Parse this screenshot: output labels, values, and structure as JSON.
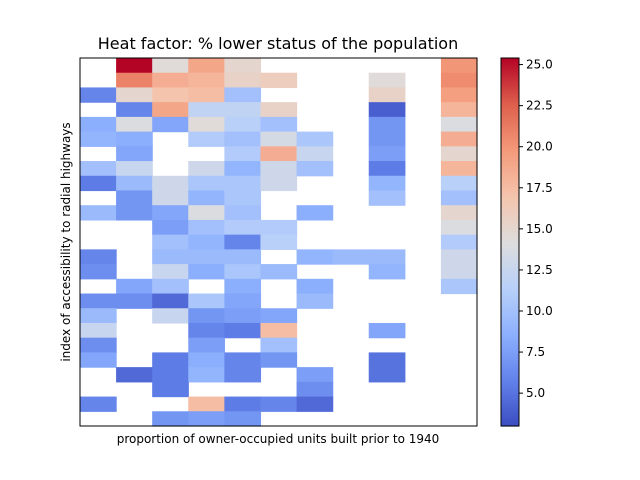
{
  "chart_data": {
    "type": "heatmap",
    "title": "Heat factor: % lower status of the population",
    "xlabel": "proportion of owner-occupied units built prior to 1940",
    "ylabel": "index of accessibility to radial highways",
    "colormap": "coolwarm",
    "vmin": 3.0,
    "vmax": 25.4,
    "colorbar_ticks": [
      5.0,
      7.5,
      10.0,
      12.5,
      15.0,
      17.5,
      20.0,
      22.5,
      25.0
    ],
    "colorbar_tick_labels": [
      "5.0",
      "7.5",
      "10.0",
      "12.5",
      "15.0",
      "17.5",
      "20.0",
      "22.5",
      "25.0"
    ],
    "n_cols": 11,
    "n_rows": 25,
    "values": [
      [
        null,
        25.4,
        14.5,
        19.0,
        15.0,
        null,
        null,
        null,
        null,
        null,
        20.0
      ],
      [
        null,
        21.0,
        18.5,
        18.0,
        15.5,
        16.0,
        null,
        null,
        14.5,
        null,
        20.5
      ],
      [
        6.0,
        15.0,
        17.0,
        17.5,
        10.0,
        null,
        null,
        null,
        15.5,
        null,
        19.5
      ],
      [
        null,
        6.0,
        19.0,
        12.0,
        12.0,
        15.5,
        null,
        null,
        4.0,
        null,
        18.0
      ],
      [
        8.5,
        14.0,
        8.0,
        14.5,
        11.5,
        10.0,
        null,
        null,
        7.0,
        null,
        14.0
      ],
      [
        9.0,
        8.5,
        null,
        11.0,
        10.0,
        13.5,
        10.5,
        null,
        7.0,
        null,
        18.5
      ],
      [
        null,
        8.0,
        null,
        null,
        11.0,
        18.5,
        12.5,
        null,
        7.5,
        null,
        15.0
      ],
      [
        10.0,
        12.5,
        null,
        13.0,
        9.0,
        13.0,
        10.0,
        null,
        5.5,
        null,
        18.0
      ],
      [
        5.5,
        9.5,
        13.0,
        10.5,
        10.5,
        13.0,
        null,
        null,
        9.0,
        null,
        11.5
      ],
      [
        null,
        7.0,
        13.0,
        9.0,
        10.5,
        null,
        null,
        null,
        10.0,
        null,
        10.0
      ],
      [
        9.5,
        7.0,
        8.0,
        14.0,
        10.0,
        null,
        8.5,
        null,
        null,
        null,
        15.0
      ],
      [
        null,
        null,
        7.5,
        10.0,
        11.0,
        11.0,
        null,
        null,
        null,
        null,
        14.0
      ],
      [
        null,
        null,
        10.0,
        9.0,
        6.0,
        11.5,
        null,
        null,
        null,
        null,
        11.0
      ],
      [
        6.0,
        null,
        9.5,
        9.5,
        9.5,
        null,
        9.0,
        9.5,
        9.5,
        null,
        13.0
      ],
      [
        6.5,
        null,
        12.5,
        8.5,
        10.5,
        9.5,
        null,
        null,
        9.0,
        null,
        13.0
      ],
      [
        null,
        8.0,
        10.0,
        null,
        8.5,
        null,
        8.5,
        null,
        null,
        null,
        10.5
      ],
      [
        6.5,
        6.5,
        4.5,
        10.5,
        8.0,
        null,
        9.5,
        null,
        null,
        null,
        null
      ],
      [
        9.5,
        null,
        12.5,
        7.0,
        7.5,
        8.0,
        null,
        null,
        null,
        null,
        null
      ],
      [
        12.5,
        null,
        null,
        6.0,
        5.5,
        17.5,
        null,
        null,
        8.0,
        null,
        null
      ],
      [
        6.5,
        null,
        null,
        7.5,
        null,
        10.0,
        null,
        null,
        null,
        null,
        null
      ],
      [
        8.0,
        null,
        5.5,
        8.5,
        6.0,
        7.0,
        null,
        null,
        5.0,
        null,
        null
      ],
      [
        null,
        4.5,
        5.5,
        9.0,
        6.0,
        null,
        7.5,
        null,
        5.0,
        null,
        null
      ],
      [
        null,
        null,
        5.5,
        null,
        null,
        null,
        6.5,
        null,
        null,
        null,
        null
      ],
      [
        6.0,
        null,
        null,
        17.5,
        5.5,
        6.0,
        4.5,
        null,
        null,
        null,
        null
      ],
      [
        null,
        null,
        7.0,
        7.5,
        7.0,
        null,
        null,
        null,
        null,
        null,
        null
      ]
    ]
  }
}
